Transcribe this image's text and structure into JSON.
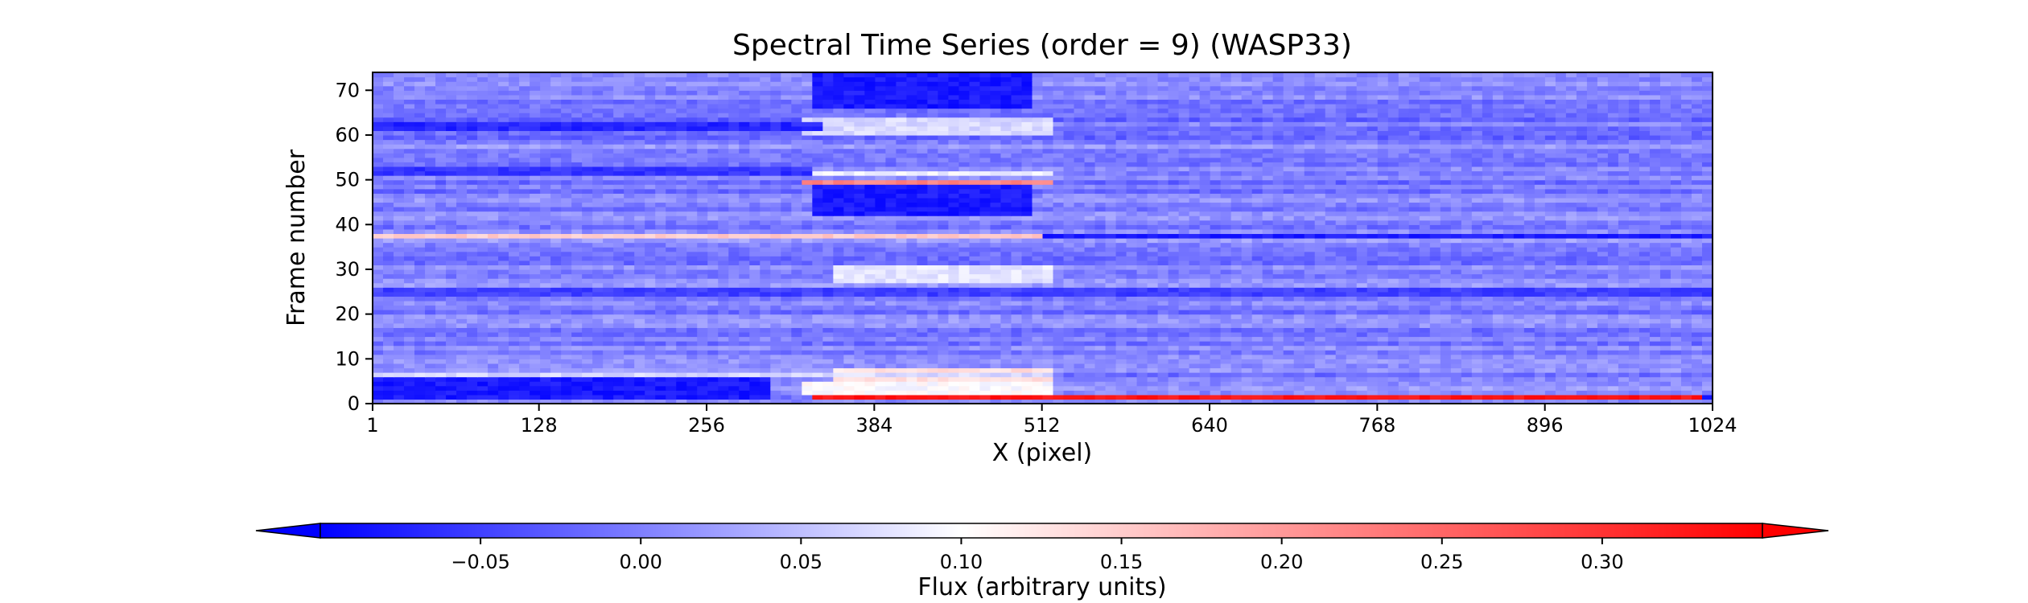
{
  "chart_data": {
    "type": "heatmap",
    "title": "Spectral Time Series (order = 9) (WASP33)",
    "xlabel": "X (pixel)",
    "ylabel": "Frame number",
    "xlim": [
      1,
      1024
    ],
    "ylim": [
      0,
      74
    ],
    "xticks": [
      1,
      128,
      256,
      384,
      512,
      640,
      768,
      896,
      1024
    ],
    "yticks": [
      0,
      10,
      20,
      30,
      40,
      50,
      60,
      70
    ],
    "grid": false,
    "colormap": "bwr",
    "colors": {
      "low": "#0000ff",
      "mid": "#ffffff",
      "high": "#ff0000"
    },
    "colorbar": {
      "label": "Flux (arbitrary units)",
      "range": [
        -0.1,
        0.35
      ],
      "ticks": [
        -0.05,
        0.0,
        0.05,
        0.1,
        0.15,
        0.2,
        0.25,
        0.3
      ],
      "tick_labels": [
        "−0.05",
        "0.00",
        "0.05",
        "0.10",
        "0.15",
        "0.20",
        "0.25",
        "0.30"
      ],
      "extend": "both",
      "orientation": "horizontal",
      "placement": "bottom"
    },
    "base_value": 0.0,
    "features": [
      {
        "x": [
          340,
          1010
        ],
        "y": [
          1,
          2
        ],
        "value": 0.33
      },
      {
        "x": [
          330,
          520
        ],
        "y": [
          2,
          5
        ],
        "value": 0.1
      },
      {
        "x": [
          355,
          520
        ],
        "y": [
          5,
          8
        ],
        "value": 0.13
      },
      {
        "x": [
          1,
          520
        ],
        "y": [
          6,
          7
        ],
        "value": 0.07
      },
      {
        "x": [
          1,
          300
        ],
        "y": [
          1,
          6
        ],
        "value": -0.08
      },
      {
        "x": [
          1,
          520
        ],
        "y": [
          37,
          38
        ],
        "value": 0.15
      },
      {
        "x": [
          520,
          1024
        ],
        "y": [
          37,
          38
        ],
        "value": -0.08
      },
      {
        "x": [
          330,
          520
        ],
        "y": [
          49,
          50
        ],
        "value": 0.22
      },
      {
        "x": [
          330,
          520
        ],
        "y": [
          51,
          52
        ],
        "value": 0.09
      },
      {
        "x": [
          330,
          520
        ],
        "y": [
          60,
          64
        ],
        "value": 0.07
      },
      {
        "x": [
          360,
          520
        ],
        "y": [
          27,
          31
        ],
        "value": 0.08
      },
      {
        "x": [
          340,
          500
        ],
        "y": [
          42,
          49
        ],
        "value": -0.08
      },
      {
        "x": [
          340,
          500
        ],
        "y": [
          66,
          74
        ],
        "value": -0.08
      },
      {
        "x": [
          1,
          340
        ],
        "y": [
          61,
          63
        ],
        "value": -0.07
      },
      {
        "x": [
          1,
          1024
        ],
        "y": [
          24,
          26
        ],
        "value": -0.05
      },
      {
        "x": [
          1,
          330
        ],
        "y": [
          51,
          53
        ],
        "value": -0.06
      },
      {
        "x": [
          1024,
          1024
        ],
        "y": [
          1,
          2
        ],
        "value": -0.07
      }
    ]
  }
}
